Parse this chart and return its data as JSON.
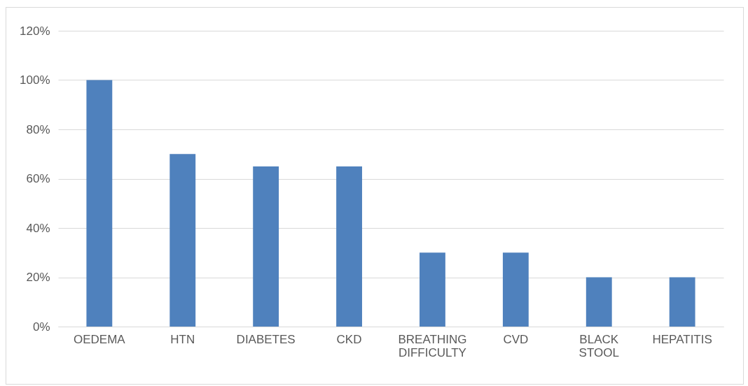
{
  "chart_data": {
    "type": "bar",
    "categories": [
      "OEDEMA",
      "HTN",
      "DIABETES",
      "CKD",
      "BREATHING DIFFICULTY",
      "CVD",
      "BLACK STOOL",
      "HEPATITIS"
    ],
    "values": [
      100,
      70,
      65,
      65,
      30,
      30,
      20,
      20
    ],
    "color": "#4f81bd",
    "ylim": [
      0,
      120
    ],
    "yticks": [
      {
        "value": 0,
        "label": "0%"
      },
      {
        "value": 20,
        "label": "20%"
      },
      {
        "value": 40,
        "label": "40%"
      },
      {
        "value": 60,
        "label": "60%"
      },
      {
        "value": 80,
        "label": "80%"
      },
      {
        "value": 100,
        "label": "100%"
      },
      {
        "value": 120,
        "label": "120%"
      }
    ],
    "grid": "y"
  }
}
